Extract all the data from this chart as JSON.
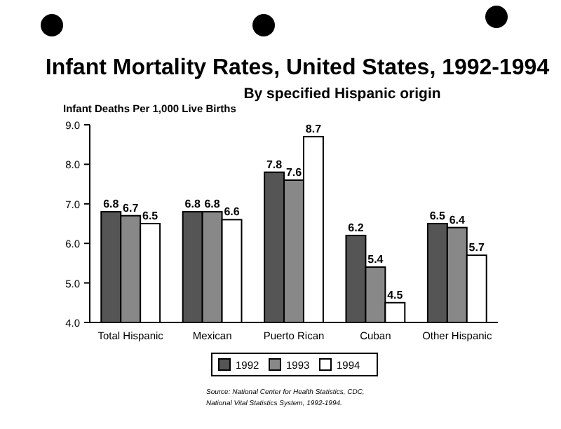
{
  "chart_data": {
    "type": "bar",
    "title": "Infant Mortality Rates, United States, 1992-1994",
    "subtitle": "By specified Hispanic origin",
    "ylabel": "Infant Deaths Per 1,000 Live Births",
    "categories": [
      "Total Hispanic",
      "Mexican",
      "Puerto Rican",
      "Cuban",
      "Other Hispanic"
    ],
    "series": [
      {
        "name": "1992",
        "color": "#555555",
        "values": [
          6.8,
          6.8,
          7.8,
          6.2,
          6.5
        ]
      },
      {
        "name": "1993",
        "color": "#888888",
        "values": [
          6.7,
          6.8,
          7.6,
          5.4,
          6.4
        ]
      },
      {
        "name": "1994",
        "color": "#ffffff",
        "values": [
          6.5,
          6.6,
          8.7,
          4.5,
          5.7
        ]
      }
    ],
    "ylim": [
      4,
      9
    ],
    "yticks": [
      {
        "value": 4,
        "label": "4.0"
      },
      {
        "value": 5,
        "label": "5.0"
      },
      {
        "value": 6,
        "label": "6.0"
      },
      {
        "value": 7,
        "label": "7.0"
      },
      {
        "value": 8,
        "label": "8.0"
      },
      {
        "value": 9,
        "label": "9.0"
      }
    ],
    "data_labels": true,
    "grid": false,
    "legend": "bottom",
    "annotations": [
      "Source: National Center for Health Statistics, CDC,",
      "National Vital Statistics System, 1992-1994."
    ]
  }
}
